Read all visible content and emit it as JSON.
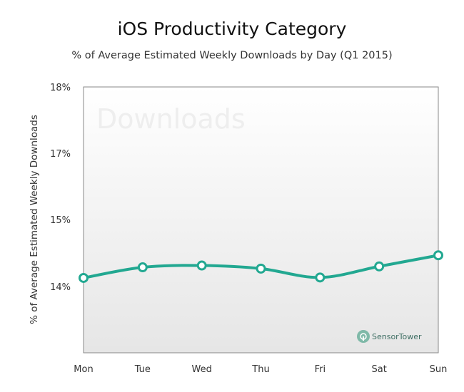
{
  "title": "iOS Productivity Category",
  "subtitle": "% of Average Estimated Weekly Downloads by Day (Q1 2015)",
  "watermark": "Downloads",
  "logo": {
    "text": "SensorTower"
  },
  "colors": {
    "line": "#22a891",
    "plot_bg": "#ececec",
    "marker_fill": "#ffffff"
  },
  "chart_data": {
    "type": "line",
    "title": "iOS Productivity Category",
    "subtitle": "% of Average Estimated Weekly Downloads by Day (Q1 2015)",
    "xlabel": "",
    "ylabel": "% of  Average Estimated Weekly Downloads",
    "categories": [
      "Mon",
      "Tue",
      "Wed",
      "Thu",
      "Fri",
      "Sat",
      "Sun"
    ],
    "y_ticks": [
      "18%",
      "17%",
      "15%",
      "14%"
    ],
    "values": [
      13.69,
      13.93,
      13.97,
      13.9,
      13.7,
      13.95,
      14.2
    ],
    "grid": false,
    "legend": "none",
    "ylim": [
      12,
      18
    ]
  }
}
